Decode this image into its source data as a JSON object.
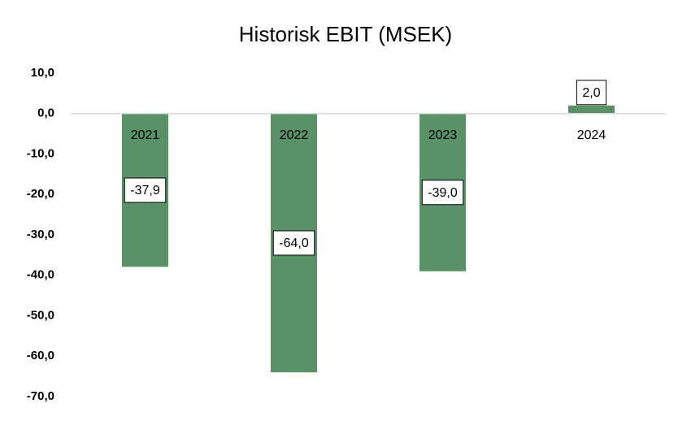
{
  "chart_data": {
    "type": "bar",
    "title": "Historisk EBIT (MSEK)",
    "categories": [
      "2021",
      "2022",
      "2023",
      "2024"
    ],
    "values": [
      -37.9,
      -64.0,
      -39.0,
      2.0
    ],
    "value_labels": [
      "-37,9",
      "-64,0",
      "-39,0",
      "2,0"
    ],
    "color": "#5b9168",
    "ylim": [
      -70,
      10
    ],
    "yticks": [
      {
        "value": 10,
        "label": "10,0"
      },
      {
        "value": 0,
        "label": "0,0"
      },
      {
        "value": -10,
        "label": "-10,0"
      },
      {
        "value": -20,
        "label": "-20,0"
      },
      {
        "value": -30,
        "label": "-30,0"
      },
      {
        "value": -40,
        "label": "-40,0"
      },
      {
        "value": -50,
        "label": "-50,0"
      },
      {
        "value": -60,
        "label": "-60,0"
      },
      {
        "value": -70,
        "label": "-70,0"
      }
    ],
    "grid": false
  }
}
